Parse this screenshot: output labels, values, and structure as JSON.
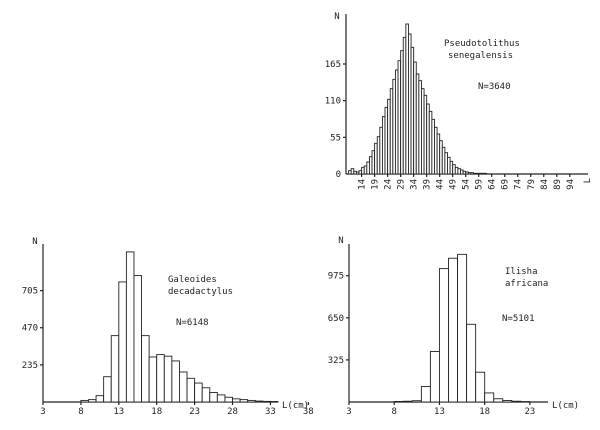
{
  "chart_data": [
    {
      "type": "bar",
      "panel": "top-right",
      "title": "Pseudotolithus senegalensis",
      "title_lines": [
        "Pseudotolithus",
        "senegalensis"
      ],
      "n_label": "N=3640",
      "ylabel": "N",
      "xlabel": "L",
      "ylim": [
        0,
        240
      ],
      "yticks": [
        55,
        110,
        165
      ],
      "xlim": [
        8,
        101
      ],
      "xticks": [
        "14",
        "19",
        "24",
        "29",
        "34",
        "39",
        "44",
        "49",
        "54",
        "59",
        "64",
        "69",
        "74",
        "79",
        "84",
        "89",
        "94"
      ],
      "x_end_label": "L",
      "bin_start": 9,
      "bin_width": 1,
      "values": [
        5,
        8,
        4,
        3,
        5,
        10,
        12,
        18,
        26,
        35,
        46,
        56,
        70,
        86,
        100,
        112,
        128,
        142,
        156,
        170,
        185,
        205,
        225,
        210,
        190,
        168,
        150,
        140,
        128,
        118,
        105,
        94,
        82,
        70,
        60,
        50,
        40,
        32,
        25,
        19,
        14,
        10,
        8,
        6,
        4,
        3,
        2,
        2,
        1,
        1,
        1,
        1,
        1
      ]
    },
    {
      "type": "bar",
      "panel": "bottom-left",
      "title": "Galeoides decadactylus",
      "title_lines": [
        "Galeoides",
        "decadactylus"
      ],
      "n_label": "N=6148",
      "ylabel": "N",
      "xlabel": "L(cm)",
      "ylim": [
        0,
        1000
      ],
      "yticks": [
        235,
        470,
        705
      ],
      "xlim": [
        3,
        34
      ],
      "xticks": [
        "3",
        "8",
        "13",
        "18",
        "23",
        "28",
        "33",
        "38"
      ],
      "bin_start": 8,
      "bin_width": 1,
      "values": [
        10,
        15,
        40,
        160,
        420,
        760,
        950,
        800,
        420,
        285,
        300,
        290,
        260,
        190,
        150,
        120,
        90,
        60,
        45,
        30,
        20,
        15,
        10,
        6,
        4,
        3
      ]
    },
    {
      "type": "bar",
      "panel": "bottom-right",
      "title": "Ilisha africana",
      "title_lines": [
        "Ilisha",
        "africana"
      ],
      "n_label": "N=5101",
      "ylabel": "N",
      "xlabel": "L(cm)",
      "ylim": [
        0,
        1220
      ],
      "yticks": [
        325,
        650,
        975
      ],
      "xlim": [
        3,
        25
      ],
      "xticks": [
        "3",
        "8",
        "13",
        "18",
        "23"
      ],
      "bin_start": 8,
      "bin_width": 1,
      "values": [
        4,
        6,
        10,
        120,
        390,
        1030,
        1110,
        1140,
        600,
        230,
        70,
        25,
        12,
        6,
        3
      ]
    }
  ]
}
